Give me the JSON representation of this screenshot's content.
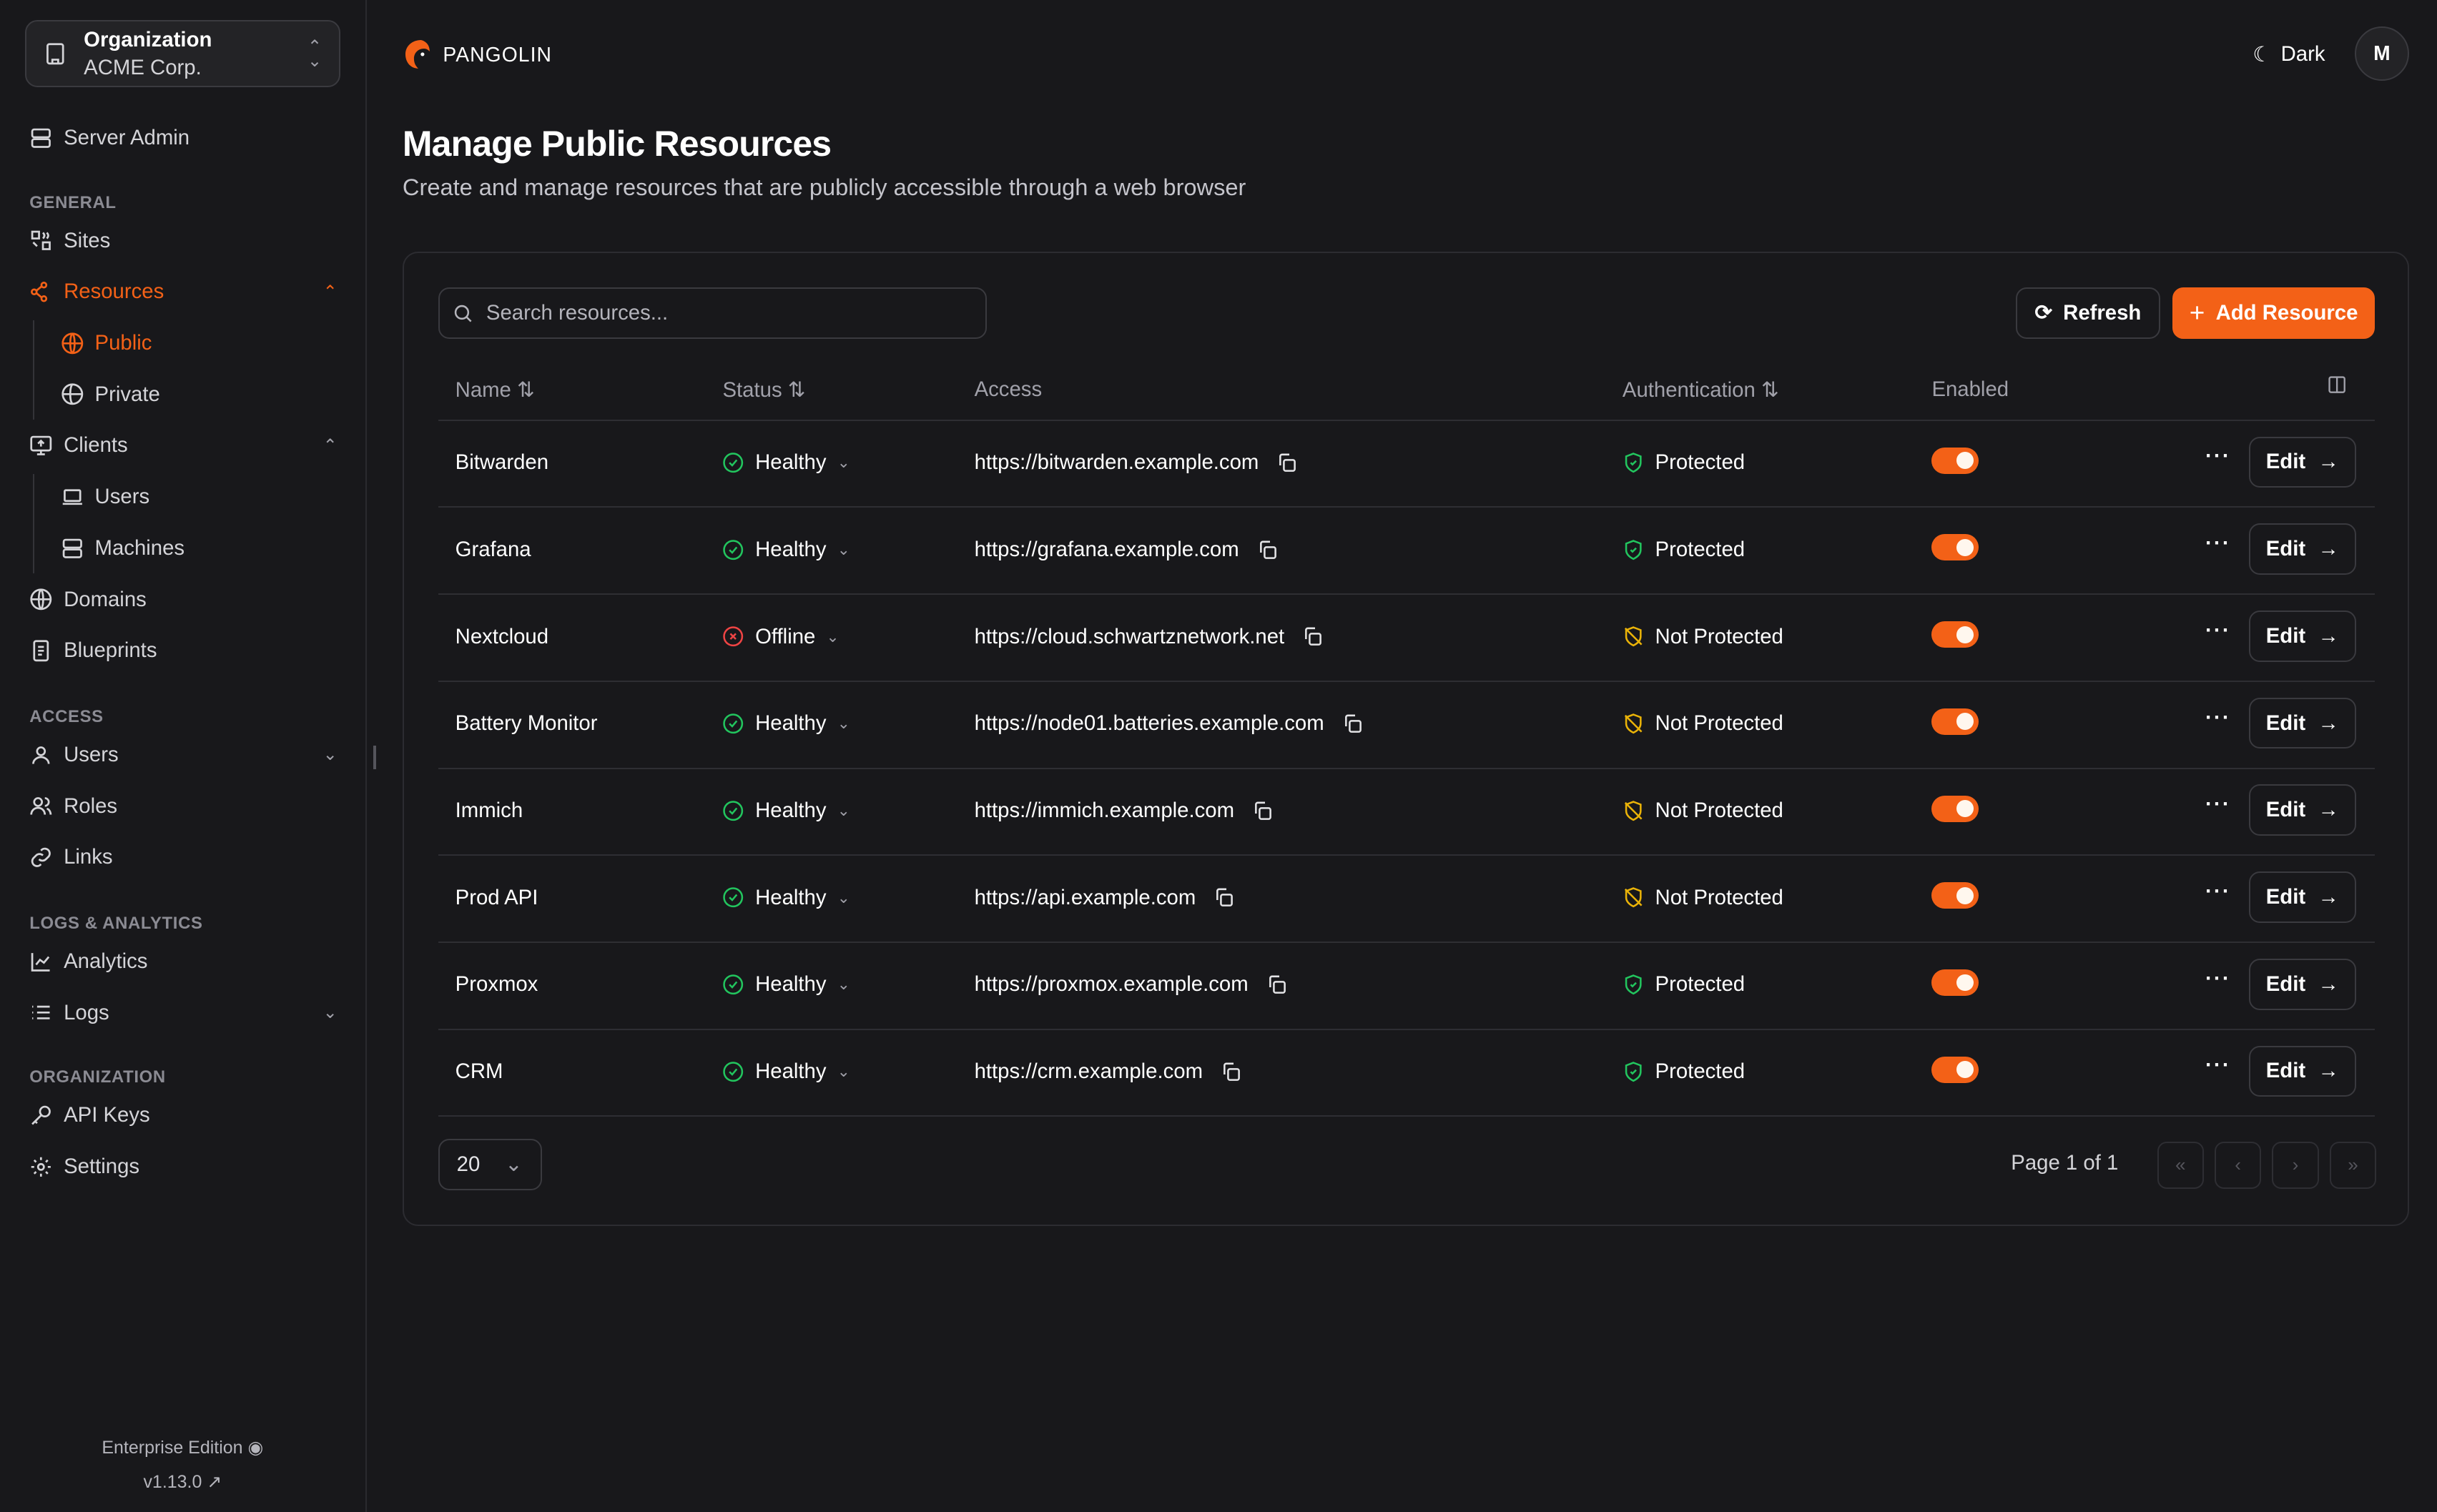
{
  "sidebar": {
    "org_label": "Organization",
    "org_name": "ACME Corp.",
    "server_admin": "Server Admin",
    "sections": {
      "general": "GENERAL",
      "access": "ACCESS",
      "logs": "LOGS & ANALYTICS",
      "organization": "ORGANIZATION"
    },
    "items": {
      "sites": "Sites",
      "resources": "Resources",
      "public": "Public",
      "private": "Private",
      "clients": "Clients",
      "users_client": "Users",
      "machines": "Machines",
      "domains": "Domains",
      "blueprints": "Blueprints",
      "users": "Users",
      "roles": "Roles",
      "links": "Links",
      "analytics": "Analytics",
      "logs": "Logs",
      "api_keys": "API Keys",
      "settings": "Settings"
    },
    "edition": "Enterprise Edition",
    "version": "v1.13.0"
  },
  "header": {
    "brand": "PANGOLIN",
    "theme": "Dark",
    "avatar": "M"
  },
  "page": {
    "title": "Manage Public Resources",
    "subtitle": "Create and manage resources that are publicly accessible through a web browser"
  },
  "toolbar": {
    "search_placeholder": "Search resources...",
    "refresh": "Refresh",
    "add": "Add Resource"
  },
  "columns": {
    "name": "Name",
    "status": "Status",
    "access": "Access",
    "auth": "Authentication",
    "enabled": "Enabled"
  },
  "rows": [
    {
      "name": "Bitwarden",
      "status": "Healthy",
      "access": "https://bitwarden.example.com",
      "auth": "Protected",
      "enabled": true,
      "edit": "Edit"
    },
    {
      "name": "Grafana",
      "status": "Healthy",
      "access": "https://grafana.example.com",
      "auth": "Protected",
      "enabled": true,
      "edit": "Edit"
    },
    {
      "name": "Nextcloud",
      "status": "Offline",
      "access": "https://cloud.schwartznetwork.net",
      "auth": "Not Protected",
      "enabled": true,
      "edit": "Edit"
    },
    {
      "name": "Battery Monitor",
      "status": "Healthy",
      "access": "https://node01.batteries.example.com",
      "auth": "Not Protected",
      "enabled": true,
      "edit": "Edit"
    },
    {
      "name": "Immich",
      "status": "Healthy",
      "access": "https://immich.example.com",
      "auth": "Not Protected",
      "enabled": true,
      "edit": "Edit"
    },
    {
      "name": "Prod API",
      "status": "Healthy",
      "access": "https://api.example.com",
      "auth": "Not Protected",
      "enabled": true,
      "edit": "Edit"
    },
    {
      "name": "Proxmox",
      "status": "Healthy",
      "access": "https://proxmox.example.com",
      "auth": "Protected",
      "enabled": true,
      "edit": "Edit"
    },
    {
      "name": "CRM",
      "status": "Healthy",
      "access": "https://crm.example.com",
      "auth": "Protected",
      "enabled": true,
      "edit": "Edit"
    }
  ],
  "pagination": {
    "page_size": "20",
    "page_info": "Page 1 of 1"
  },
  "colors": {
    "accent": "#f36117",
    "healthy": "#22c55e",
    "offline": "#ef4444",
    "not_protected": "#eab308",
    "background": "#18181b"
  }
}
